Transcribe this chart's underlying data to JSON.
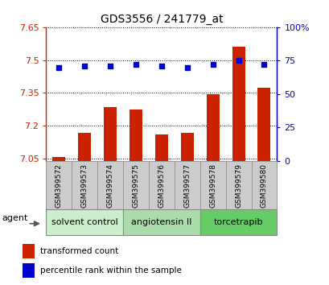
{
  "title": "GDS3556 / 241779_at",
  "samples": [
    "GSM399572",
    "GSM399573",
    "GSM399574",
    "GSM399575",
    "GSM399576",
    "GSM399577",
    "GSM399578",
    "GSM399579",
    "GSM399580"
  ],
  "bar_values": [
    7.06,
    7.17,
    7.285,
    7.275,
    7.16,
    7.17,
    7.345,
    7.56,
    7.375
  ],
  "percentile_values": [
    70,
    71,
    71,
    72,
    71,
    70,
    72,
    75,
    72
  ],
  "ylim_left": [
    7.04,
    7.65
  ],
  "ylim_right": [
    0,
    100
  ],
  "yticks_left": [
    7.05,
    7.2,
    7.35,
    7.5,
    7.65
  ],
  "yticks_left_labels": [
    "7.05",
    "7.2",
    "7.35",
    "7.5",
    "7.65"
  ],
  "yticks_right": [
    0,
    25,
    50,
    75,
    100
  ],
  "yticks_right_labels": [
    "0",
    "25",
    "50",
    "75",
    "100%"
  ],
  "bar_color": "#cc2200",
  "dot_color": "#0000cc",
  "groups": [
    {
      "label": "solvent control",
      "indices": [
        0,
        1,
        2
      ],
      "color": "#cceecc"
    },
    {
      "label": "angiotensin II",
      "indices": [
        3,
        4,
        5
      ],
      "color": "#aaddaa"
    },
    {
      "label": "torcetrapib",
      "indices": [
        6,
        7,
        8
      ],
      "color": "#66cc66"
    }
  ],
  "agent_label": "agent",
  "legend_bar_label": "transformed count",
  "legend_dot_label": "percentile rank within the sample",
  "grid_color": "#000000",
  "left_axis_color": "#cc2200",
  "right_axis_color": "#0000cc",
  "bar_bottom": 7.04,
  "sample_box_color": "#cccccc",
  "sample_box_edge": "#999999"
}
